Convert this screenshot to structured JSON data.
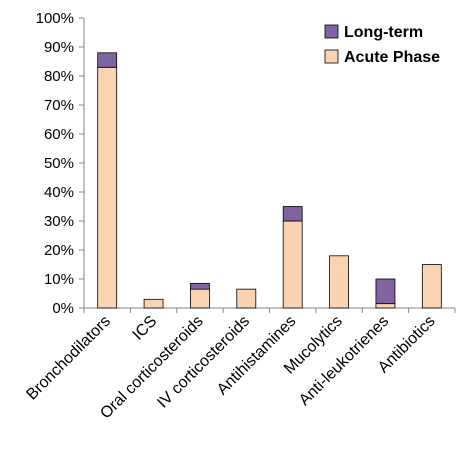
{
  "chart_data": {
    "type": "bar",
    "stacked": true,
    "categories": [
      "Bronchodilators",
      "ICS",
      "Oral corticosteroids",
      "IV corticosteroids",
      "Antihistamines",
      "Mucolytics",
      "Anti-leukotrienes",
      "Antibiotics"
    ],
    "series": [
      {
        "name": "Acute Phase",
        "color": "#FAD3B2",
        "values": [
          83,
          3,
          6.5,
          6.5,
          30,
          18,
          1.5,
          15
        ]
      },
      {
        "name": "Long-term",
        "color": "#8064A2",
        "values": [
          5,
          0,
          2,
          0,
          5,
          0,
          8.5,
          0
        ]
      }
    ],
    "legend_order": [
      "Long-term",
      "Acute Phase"
    ],
    "legend_position": "top-right",
    "ylim": [
      0,
      100
    ],
    "ytick_step": 10,
    "ytick_format": "percent",
    "grid": false,
    "xlabel": "",
    "ylabel": "",
    "title": ""
  }
}
